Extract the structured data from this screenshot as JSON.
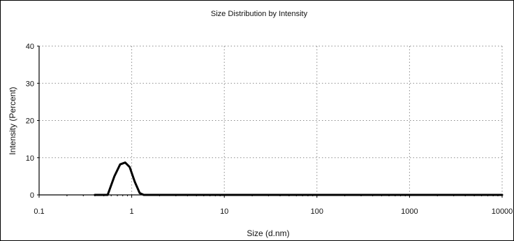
{
  "chart_data": {
    "type": "line",
    "title": "Size Distribution by Intensity",
    "xlabel": "Size (d.nm)",
    "ylabel": "Intensity (Percent)",
    "x_scale": "log",
    "xlim": [
      0.1,
      10000
    ],
    "ylim": [
      0,
      40
    ],
    "x_ticks": [
      "0.1",
      "1",
      "10",
      "100",
      "1000",
      "10000"
    ],
    "x_tick_values": [
      0.1,
      1,
      10,
      100,
      1000,
      10000
    ],
    "y_ticks": [
      "0",
      "10",
      "20",
      "30",
      "40"
    ],
    "y_tick_values": [
      0,
      10,
      20,
      30,
      40
    ],
    "grid": true,
    "series": [
      {
        "color": "#000000",
        "points": [
          [
            0.4,
            0
          ],
          [
            0.55,
            0
          ],
          [
            0.65,
            5
          ],
          [
            0.75,
            8.2
          ],
          [
            0.85,
            8.7
          ],
          [
            0.95,
            7.5
          ],
          [
            1.08,
            3.5
          ],
          [
            1.22,
            0.5
          ],
          [
            1.35,
            0
          ],
          [
            10000,
            0
          ]
        ]
      }
    ]
  }
}
